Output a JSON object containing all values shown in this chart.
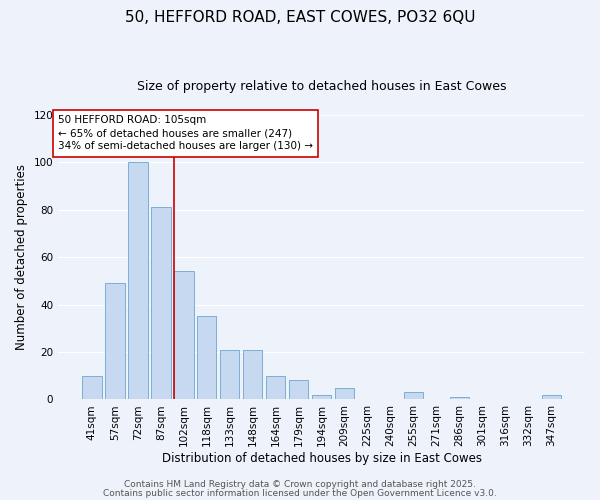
{
  "title": "50, HEFFORD ROAD, EAST COWES, PO32 6QU",
  "subtitle": "Size of property relative to detached houses in East Cowes",
  "xlabel": "Distribution of detached houses by size in East Cowes",
  "ylabel": "Number of detached properties",
  "bar_labels": [
    "41sqm",
    "57sqm",
    "72sqm",
    "87sqm",
    "102sqm",
    "118sqm",
    "133sqm",
    "148sqm",
    "164sqm",
    "179sqm",
    "194sqm",
    "209sqm",
    "225sqm",
    "240sqm",
    "255sqm",
    "271sqm",
    "286sqm",
    "301sqm",
    "316sqm",
    "332sqm",
    "347sqm"
  ],
  "bar_values": [
    10,
    49,
    100,
    81,
    54,
    35,
    21,
    21,
    10,
    8,
    2,
    5,
    0,
    0,
    3,
    0,
    1,
    0,
    0,
    0,
    2
  ],
  "bar_color": "#c6d9f0",
  "bar_edge_color": "#7bafd4",
  "highlight_line_index": 4,
  "highlight_line_color": "#cc0000",
  "ylim": [
    0,
    120
  ],
  "yticks": [
    0,
    20,
    40,
    60,
    80,
    100,
    120
  ],
  "annotation_title": "50 HEFFORD ROAD: 105sqm",
  "annotation_line1": "← 65% of detached houses are smaller (247)",
  "annotation_line2": "34% of semi-detached houses are larger (130) →",
  "annotation_box_color": "#ffffff",
  "annotation_box_edge": "#cc0000",
  "footer1": "Contains HM Land Registry data © Crown copyright and database right 2025.",
  "footer2": "Contains public sector information licensed under the Open Government Licence v3.0.",
  "bg_color": "#eef2fa",
  "grid_color": "#ffffff",
  "title_fontsize": 11,
  "subtitle_fontsize": 9,
  "axis_label_fontsize": 8.5,
  "tick_fontsize": 7.5,
  "annotation_fontsize": 7.5,
  "footer_fontsize": 6.5
}
